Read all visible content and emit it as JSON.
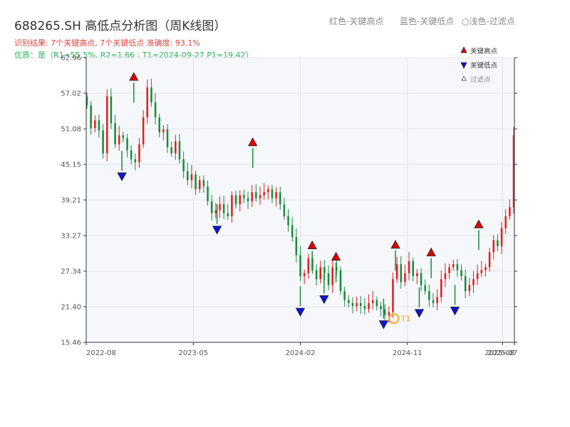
{
  "title": "688265.SH 高低点分析图（周K线图）",
  "header_legend": {
    "red": "红色-关键高点",
    "blue": "蓝色-关键低点",
    "light": "○浅色-过滤点"
  },
  "summary": "识别结果: 7个关键高点, 7个关键低点  准确度: 93.1%",
  "quality": "优质：是（R1=55.5%, R2=1.66 ; T1=2024-09-27 P1=19.42）",
  "colors": {
    "up": "#e02020",
    "down": "#1a8c3c",
    "high_marker": "#e00000",
    "low_marker": "#1010dd",
    "t1": "#f5a623",
    "plot_bg": "#f5f7fa"
  },
  "chart_data": {
    "type": "candlestick",
    "xlabel": "",
    "ylabel": "",
    "y_ticks": [
      15.46,
      21.4,
      27.34,
      33.27,
      39.21,
      45.15,
      51.08,
      57.02,
      62.96
    ],
    "ylim": [
      15.46,
      62.96
    ],
    "x_ticks": [
      "2022-08",
      "2023-05",
      "2024-02",
      "2024-11",
      "2025-07",
      "2025-08"
    ],
    "grid": true,
    "legend": {
      "position": "top-right",
      "entries": [
        "关键高点",
        "关键低点",
        "过滤点"
      ]
    },
    "series": [
      {
        "name": "weekly_close",
        "values": [
          55.0,
          51.2,
          52.5,
          50.8,
          47.0,
          56.5,
          52.0,
          48.5,
          50.0,
          49.5,
          47.5,
          46.0,
          45.5,
          48.5,
          53.0,
          58.0,
          55.5,
          53.0,
          50.5,
          51.0,
          48.0,
          47.0,
          49.0,
          46.0,
          44.0,
          42.5,
          43.5,
          41.0,
          42.5,
          41.5,
          39.0,
          37.0,
          37.5,
          38.5,
          37.0,
          36.5,
          40.0,
          38.5,
          40.0,
          39.5,
          39.0,
          40.5,
          39.5,
          40.0,
          40.5,
          41.0,
          39.5,
          40.5,
          38.5,
          36.5,
          35.0,
          33.0,
          30.0,
          26.5,
          27.0,
          29.5,
          27.5,
          26.0,
          28.0,
          27.0,
          25.0,
          28.0,
          27.5,
          24.0,
          22.5,
          22.0,
          21.5,
          22.0,
          21.5,
          21.0,
          22.0,
          22.5,
          21.5,
          21.0,
          20.0,
          20.5,
          26.0,
          28.5,
          25.5,
          27.0,
          29.0,
          26.5,
          27.0,
          25.0,
          24.0,
          22.5,
          22.0,
          23.0,
          26.0,
          27.0,
          28.0,
          28.5,
          27.5,
          26.5,
          24.0,
          25.0,
          26.0,
          27.0,
          27.5,
          28.0,
          30.5,
          32.5,
          31.5,
          34.5,
          36.5,
          38.0,
          50.0
        ]
      }
    ],
    "key_highs": [
      {
        "date": "2022-12",
        "value": 58.8
      },
      {
        "date": "2023-10",
        "value": 47.9
      },
      {
        "date": "2024-03",
        "value": 30.7
      },
      {
        "date": "2024-05",
        "value": 28.8
      },
      {
        "date": "2024-10",
        "value": 30.8
      },
      {
        "date": "2025-01",
        "value": 29.5
      },
      {
        "date": "2025-05",
        "value": 34.2
      }
    ],
    "key_lows": [
      {
        "date": "2022-11",
        "value": 44.1
      },
      {
        "date": "2023-07",
        "value": 35.2
      },
      {
        "date": "2024-02",
        "value": 21.5
      },
      {
        "date": "2024-04",
        "value": 23.6
      },
      {
        "date": "2024-09",
        "value": 19.42
      },
      {
        "date": "2024-12",
        "value": 21.3
      },
      {
        "date": "2025-03",
        "value": 21.7
      }
    ],
    "annotation": {
      "label": "T1",
      "date": "2024-09-27",
      "value": 19.42
    }
  }
}
